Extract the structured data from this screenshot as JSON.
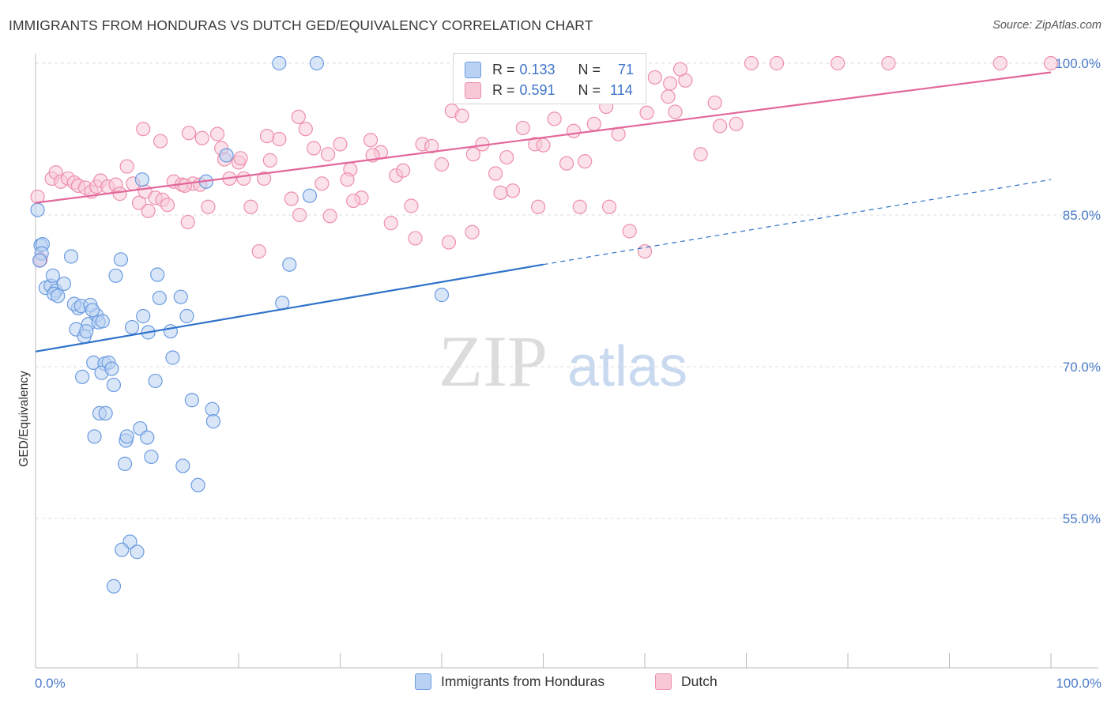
{
  "header": {
    "title": "IMMIGRANTS FROM HONDURAS VS DUTCH GED/EQUIVALENCY CORRELATION CHART",
    "source": "Source: ZipAtlas.com"
  },
  "legend": {
    "rows": [
      {
        "r_label": "R =",
        "r_value": "0.133",
        "n_label": "N =",
        "n_value": "71"
      },
      {
        "r_label": "R =",
        "r_value": "0.591",
        "n_label": "N =",
        "n_value": "114"
      }
    ]
  },
  "watermark": {
    "zip": "ZIP",
    "atlas": "atlas"
  },
  "chart_data": {
    "type": "scatter",
    "title": "IMMIGRANTS FROM HONDURAS VS DUTCH GED/EQUIVALENCY CORRELATION CHART",
    "ylabel": "GED/Equivalency",
    "xlabel": "",
    "xlim": [
      0,
      100
    ],
    "ylim": [
      40,
      101
    ],
    "x_tick_labels": [
      "0.0%",
      "100.0%"
    ],
    "y_tick_labels": [
      "100.0%",
      "85.0%",
      "70.0%",
      "55.0%"
    ],
    "y_ticks": [
      100,
      85,
      70,
      55
    ],
    "grid": true,
    "legend_position": "top-center",
    "colors": {
      "honduras": "#6a9be0",
      "honduras_fill": "#b9d2f3",
      "honduras_line": "#2f72c9",
      "dutch": "#ee8fad",
      "dutch_fill": "#f8c8d7",
      "dutch_line": "#e2679a",
      "tick_text": "#4a7bc8"
    },
    "series": [
      {
        "name": "Immigrants from Honduras",
        "color": "#6a9be0",
        "trend": {
          "x0": 0,
          "y0": 71.5,
          "x1": 50,
          "y1": 80.1,
          "dashed_to_x": 100,
          "dashed_to_y": 88.5
        },
        "points": [
          [
            0.2,
            85.5
          ],
          [
            0.5,
            82.0
          ],
          [
            0.7,
            82.1
          ],
          [
            0.6,
            81.2
          ],
          [
            0.4,
            80.5
          ],
          [
            1.0,
            77.8
          ],
          [
            1.5,
            78.0
          ],
          [
            2.0,
            77.5
          ],
          [
            1.8,
            77.2
          ],
          [
            2.2,
            77.0
          ],
          [
            2.8,
            78.2
          ],
          [
            1.7,
            79.0
          ],
          [
            3.5,
            80.9
          ],
          [
            4.2,
            75.8
          ],
          [
            3.8,
            76.2
          ],
          [
            4.5,
            76.0
          ],
          [
            5.2,
            74.2
          ],
          [
            6.0,
            75.1
          ],
          [
            5.4,
            76.1
          ],
          [
            5.6,
            75.6
          ],
          [
            6.2,
            74.4
          ],
          [
            6.6,
            74.5
          ],
          [
            4.0,
            73.7
          ],
          [
            4.8,
            73.0
          ],
          [
            5.0,
            73.5
          ],
          [
            7.9,
            79.0
          ],
          [
            8.4,
            80.6
          ],
          [
            9.5,
            73.9
          ],
          [
            10.6,
            75.0
          ],
          [
            11.1,
            73.4
          ],
          [
            12.0,
            79.1
          ],
          [
            12.2,
            76.8
          ],
          [
            13.3,
            73.5
          ],
          [
            14.3,
            76.9
          ],
          [
            14.9,
            75.0
          ],
          [
            5.7,
            70.4
          ],
          [
            6.8,
            70.3
          ],
          [
            7.2,
            70.4
          ],
          [
            6.5,
            69.4
          ],
          [
            7.5,
            69.8
          ],
          [
            4.6,
            69.0
          ],
          [
            7.7,
            68.2
          ],
          [
            11.8,
            68.6
          ],
          [
            13.5,
            70.9
          ],
          [
            15.4,
            66.7
          ],
          [
            6.3,
            65.4
          ],
          [
            6.9,
            65.4
          ],
          [
            5.8,
            63.1
          ],
          [
            8.9,
            62.7
          ],
          [
            9.0,
            63.1
          ],
          [
            10.3,
            63.9
          ],
          [
            11.0,
            63.0
          ],
          [
            11.4,
            61.1
          ],
          [
            8.8,
            60.4
          ],
          [
            14.5,
            60.2
          ],
          [
            16.0,
            58.3
          ],
          [
            17.4,
            65.8
          ],
          [
            17.5,
            64.6
          ],
          [
            9.3,
            52.7
          ],
          [
            8.5,
            51.9
          ],
          [
            10.0,
            51.7
          ],
          [
            7.7,
            48.3
          ],
          [
            18.8,
            90.9
          ],
          [
            16.8,
            88.3
          ],
          [
            27.0,
            86.9
          ],
          [
            25.0,
            80.1
          ],
          [
            24.3,
            76.3
          ],
          [
            40.0,
            77.1
          ],
          [
            24.0,
            100.0
          ],
          [
            27.7,
            100.0
          ],
          [
            10.5,
            88.5
          ]
        ]
      },
      {
        "name": "Dutch",
        "color": "#ee8fad",
        "trend": {
          "x0": 0,
          "y0": 86.2,
          "x1": 100,
          "y1": 99.1
        },
        "points": [
          [
            0.2,
            86.8
          ],
          [
            0.5,
            80.6
          ],
          [
            1.6,
            88.6
          ],
          [
            2.0,
            89.2
          ],
          [
            2.5,
            88.3
          ],
          [
            3.2,
            88.6
          ],
          [
            3.8,
            88.2
          ],
          [
            4.2,
            87.9
          ],
          [
            4.9,
            87.7
          ],
          [
            5.5,
            87.3
          ],
          [
            6.0,
            87.8
          ],
          [
            6.4,
            88.4
          ],
          [
            7.1,
            87.8
          ],
          [
            7.9,
            88.0
          ],
          [
            8.3,
            87.1
          ],
          [
            9.0,
            89.8
          ],
          [
            9.6,
            88.1
          ],
          [
            10.2,
            86.2
          ],
          [
            10.8,
            87.3
          ],
          [
            11.1,
            85.4
          ],
          [
            11.8,
            86.7
          ],
          [
            12.5,
            86.5
          ],
          [
            13.0,
            86.0
          ],
          [
            13.6,
            88.3
          ],
          [
            14.4,
            88.0
          ],
          [
            15.0,
            84.3
          ],
          [
            15.5,
            88.1
          ],
          [
            16.2,
            88.0
          ],
          [
            17.0,
            85.8
          ],
          [
            18.3,
            91.6
          ],
          [
            19.1,
            88.6
          ],
          [
            20.0,
            90.2
          ],
          [
            20.5,
            88.6
          ],
          [
            21.2,
            85.8
          ],
          [
            22.0,
            81.4
          ],
          [
            22.5,
            88.6
          ],
          [
            23.1,
            90.4
          ],
          [
            24.0,
            92.5
          ],
          [
            25.2,
            86.6
          ],
          [
            26.0,
            85.0
          ],
          [
            27.4,
            91.6
          ],
          [
            28.2,
            88.1
          ],
          [
            29.0,
            84.9
          ],
          [
            30.0,
            92.0
          ],
          [
            31.0,
            89.5
          ],
          [
            32.1,
            86.7
          ],
          [
            33.0,
            92.4
          ],
          [
            34.0,
            91.2
          ],
          [
            35.5,
            88.9
          ],
          [
            36.2,
            89.4
          ],
          [
            37.0,
            85.9
          ],
          [
            38.1,
            92.0
          ],
          [
            39.0,
            91.8
          ],
          [
            40.0,
            90.0
          ],
          [
            41.0,
            95.3
          ],
          [
            42.0,
            94.8
          ],
          [
            43.1,
            91.0
          ],
          [
            44.0,
            92.0
          ],
          [
            45.3,
            89.1
          ],
          [
            46.4,
            90.7
          ],
          [
            47.0,
            87.4
          ],
          [
            48.0,
            93.6
          ],
          [
            49.2,
            92.0
          ],
          [
            50.0,
            91.9
          ],
          [
            51.1,
            94.5
          ],
          [
            52.3,
            90.1
          ],
          [
            53.0,
            93.3
          ],
          [
            54.1,
            90.3
          ],
          [
            55.0,
            94.0
          ],
          [
            56.2,
            95.7
          ],
          [
            57.4,
            93.0
          ],
          [
            58.0,
            98.0
          ],
          [
            60.2,
            95.1
          ],
          [
            62.3,
            96.7
          ],
          [
            63.0,
            95.2
          ],
          [
            64.0,
            98.3
          ],
          [
            65.5,
            91.0
          ],
          [
            66.9,
            96.1
          ],
          [
            67.4,
            93.8
          ],
          [
            69.0,
            94.0
          ],
          [
            70.5,
            100.0
          ],
          [
            73.0,
            100.0
          ],
          [
            79.0,
            100.0
          ],
          [
            84.0,
            100.0
          ],
          [
            95.0,
            100.0
          ],
          [
            100.0,
            100.0
          ],
          [
            63.5,
            99.4
          ],
          [
            62.5,
            98.0
          ],
          [
            61.0,
            98.6
          ],
          [
            58.5,
            83.4
          ],
          [
            56.5,
            85.8
          ],
          [
            53.6,
            85.8
          ],
          [
            49.5,
            85.8
          ],
          [
            45.8,
            87.2
          ],
          [
            43.0,
            83.3
          ],
          [
            40.7,
            82.3
          ],
          [
            37.4,
            82.7
          ],
          [
            35.0,
            84.2
          ],
          [
            31.3,
            86.4
          ],
          [
            28.8,
            91.0
          ],
          [
            25.9,
            94.7
          ],
          [
            22.8,
            92.8
          ],
          [
            20.2,
            90.6
          ],
          [
            17.9,
            93.0
          ],
          [
            16.4,
            92.6
          ],
          [
            15.1,
            93.1
          ],
          [
            10.6,
            93.5
          ],
          [
            12.3,
            92.3
          ],
          [
            14.7,
            87.9
          ],
          [
            18.6,
            90.5
          ],
          [
            60.0,
            81.4
          ],
          [
            30.7,
            88.5
          ],
          [
            33.2,
            90.9
          ],
          [
            26.6,
            93.5
          ]
        ]
      }
    ]
  },
  "bottom_legend": {
    "items": [
      "Immigrants from Honduras",
      "Dutch"
    ]
  }
}
